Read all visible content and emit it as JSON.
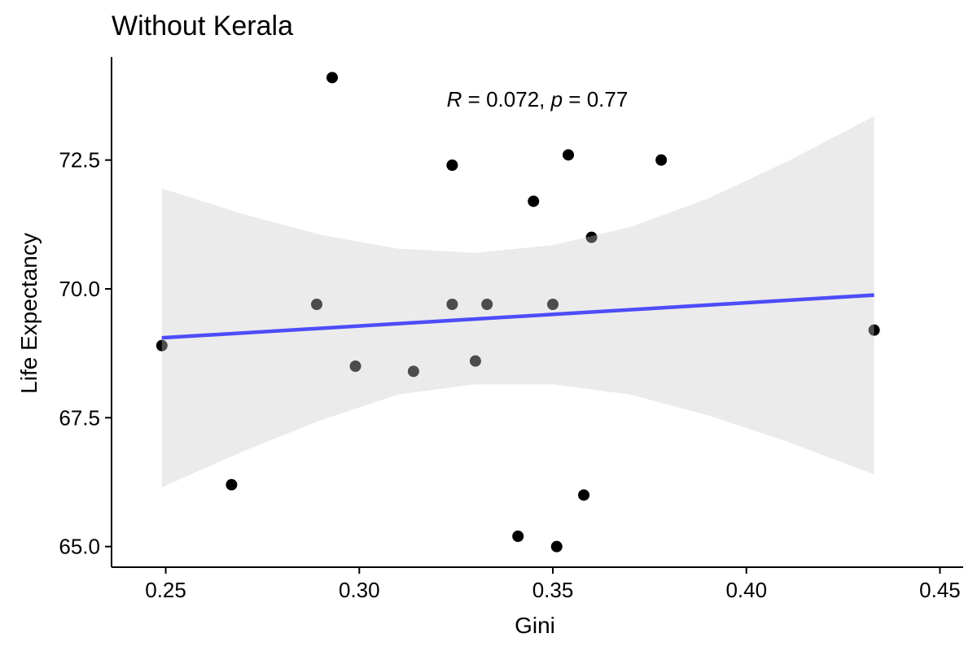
{
  "chart_data": {
    "type": "scatter",
    "title": "Without Kerala",
    "xlabel": "Gini",
    "ylabel": "Life Expectancy",
    "xlim": [
      0.236,
      0.456
    ],
    "ylim": [
      64.6,
      74.5
    ],
    "x_ticks": [
      "0.25",
      "0.30",
      "0.35",
      "0.40",
      "0.45"
    ],
    "y_ticks": [
      "65.0",
      "67.5",
      "70.0",
      "72.5"
    ],
    "annotation": {
      "r_symbol": "R",
      "r_text": " = 0.072, ",
      "p_symbol": "p",
      "p_text": " = 0.77"
    },
    "points": [
      {
        "x": 0.249,
        "y": 68.9
      },
      {
        "x": 0.267,
        "y": 66.2
      },
      {
        "x": 0.289,
        "y": 69.7
      },
      {
        "x": 0.293,
        "y": 74.1
      },
      {
        "x": 0.299,
        "y": 68.5
      },
      {
        "x": 0.314,
        "y": 68.4
      },
      {
        "x": 0.324,
        "y": 72.4
      },
      {
        "x": 0.324,
        "y": 69.7
      },
      {
        "x": 0.33,
        "y": 68.6
      },
      {
        "x": 0.333,
        "y": 69.7
      },
      {
        "x": 0.341,
        "y": 65.2
      },
      {
        "x": 0.345,
        "y": 71.7
      },
      {
        "x": 0.35,
        "y": 69.7
      },
      {
        "x": 0.351,
        "y": 65.0
      },
      {
        "x": 0.354,
        "y": 72.6
      },
      {
        "x": 0.358,
        "y": 66.0
      },
      {
        "x": 0.36,
        "y": 71.0
      },
      {
        "x": 0.378,
        "y": 72.5
      },
      {
        "x": 0.433,
        "y": 69.2
      }
    ],
    "regression_line": {
      "x": [
        0.249,
        0.433
      ],
      "y": [
        69.05,
        69.88
      ]
    },
    "confidence_band": {
      "x": [
        0.249,
        0.27,
        0.29,
        0.31,
        0.33,
        0.35,
        0.37,
        0.39,
        0.41,
        0.433
      ],
      "upper": [
        71.95,
        71.45,
        71.05,
        70.78,
        70.7,
        70.85,
        71.2,
        71.75,
        72.45,
        73.35
      ],
      "lower": [
        66.15,
        66.85,
        67.45,
        67.95,
        68.15,
        68.15,
        67.95,
        67.55,
        67.05,
        66.4
      ]
    },
    "grid": false,
    "colors": {
      "points": "#000000",
      "line": "#0000ff",
      "band": "#ebebeb"
    }
  }
}
